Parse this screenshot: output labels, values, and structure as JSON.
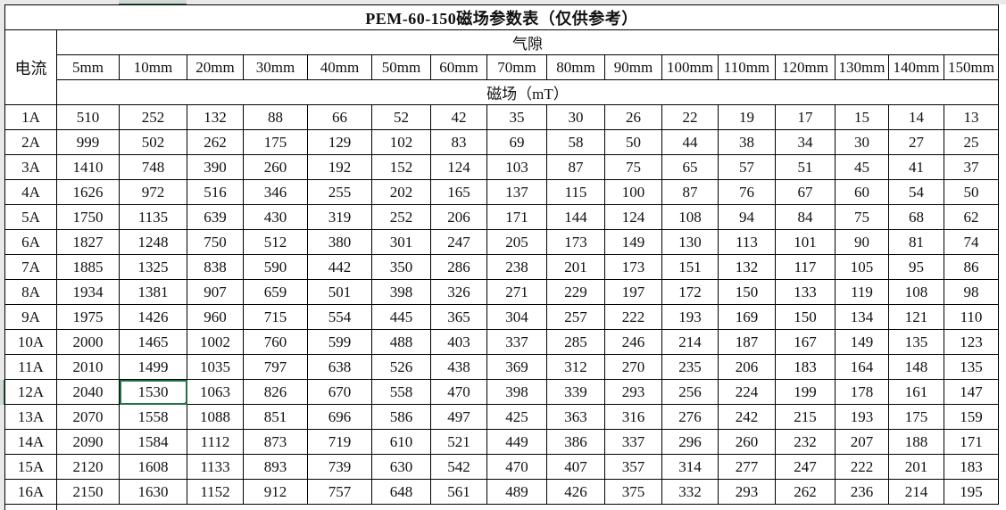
{
  "sheet": {
    "title": "PEM-60-150磁场参数表（仅供参考）",
    "current_label": "电流",
    "gap_label": "气隙",
    "field_label": "磁场（mT）",
    "gaps": [
      "5mm",
      "10mm",
      "20mm",
      "30mm",
      "40mm",
      "50mm",
      "60mm",
      "70mm",
      "80mm",
      "90mm",
      "100mm",
      "110mm",
      "120mm",
      "130mm",
      "140mm",
      "150mm"
    ],
    "rows": [
      {
        "current": "1A",
        "values": [
          510,
          252,
          132,
          88,
          66,
          52,
          42,
          35,
          30,
          26,
          22,
          19,
          17,
          15,
          14,
          13
        ]
      },
      {
        "current": "2A",
        "values": [
          999,
          502,
          262,
          175,
          129,
          102,
          83,
          69,
          58,
          50,
          44,
          38,
          34,
          30,
          27,
          25
        ]
      },
      {
        "current": "3A",
        "values": [
          1410,
          748,
          390,
          260,
          192,
          152,
          124,
          103,
          87,
          75,
          65,
          57,
          51,
          45,
          41,
          37
        ]
      },
      {
        "current": "4A",
        "values": [
          1626,
          972,
          516,
          346,
          255,
          202,
          165,
          137,
          115,
          100,
          87,
          76,
          67,
          60,
          54,
          50
        ]
      },
      {
        "current": "5A",
        "values": [
          1750,
          1135,
          639,
          430,
          319,
          252,
          206,
          171,
          144,
          124,
          108,
          94,
          84,
          75,
          68,
          62
        ]
      },
      {
        "current": "6A",
        "values": [
          1827,
          1248,
          750,
          512,
          380,
          301,
          247,
          205,
          173,
          149,
          130,
          113,
          101,
          90,
          81,
          74
        ]
      },
      {
        "current": "7A",
        "values": [
          1885,
          1325,
          838,
          590,
          442,
          350,
          286,
          238,
          201,
          173,
          151,
          132,
          117,
          105,
          95,
          86
        ]
      },
      {
        "current": "8A",
        "values": [
          1934,
          1381,
          907,
          659,
          501,
          398,
          326,
          271,
          229,
          197,
          172,
          150,
          133,
          119,
          108,
          98
        ]
      },
      {
        "current": "9A",
        "values": [
          1975,
          1426,
          960,
          715,
          554,
          445,
          365,
          304,
          257,
          222,
          193,
          169,
          150,
          134,
          121,
          110
        ]
      },
      {
        "current": "10A",
        "values": [
          2000,
          1465,
          1002,
          760,
          599,
          488,
          403,
          337,
          285,
          246,
          214,
          187,
          167,
          149,
          135,
          123
        ]
      },
      {
        "current": "11A",
        "values": [
          2010,
          1499,
          1035,
          797,
          638,
          526,
          438,
          369,
          312,
          270,
          235,
          206,
          183,
          164,
          148,
          135
        ]
      },
      {
        "current": "12A",
        "values": [
          2040,
          1530,
          1063,
          826,
          670,
          558,
          470,
          398,
          339,
          293,
          256,
          224,
          199,
          178,
          161,
          147
        ]
      },
      {
        "current": "13A",
        "values": [
          2070,
          1558,
          1088,
          851,
          696,
          586,
          497,
          425,
          363,
          316,
          276,
          242,
          215,
          193,
          175,
          159
        ]
      },
      {
        "current": "14A",
        "values": [
          2090,
          1584,
          1112,
          873,
          719,
          610,
          521,
          449,
          386,
          337,
          296,
          260,
          232,
          207,
          188,
          171
        ]
      },
      {
        "current": "15A",
        "values": [
          2120,
          1608,
          1133,
          893,
          739,
          630,
          542,
          470,
          407,
          357,
          314,
          277,
          247,
          222,
          201,
          183
        ]
      },
      {
        "current": "16A",
        "values": [
          2150,
          1630,
          1152,
          912,
          757,
          648,
          561,
          489,
          426,
          375,
          332,
          293,
          262,
          236,
          214,
          195
        ]
      }
    ],
    "selected_cell": {
      "row": 11,
      "col": 1
    },
    "accent_color": "#217346"
  }
}
